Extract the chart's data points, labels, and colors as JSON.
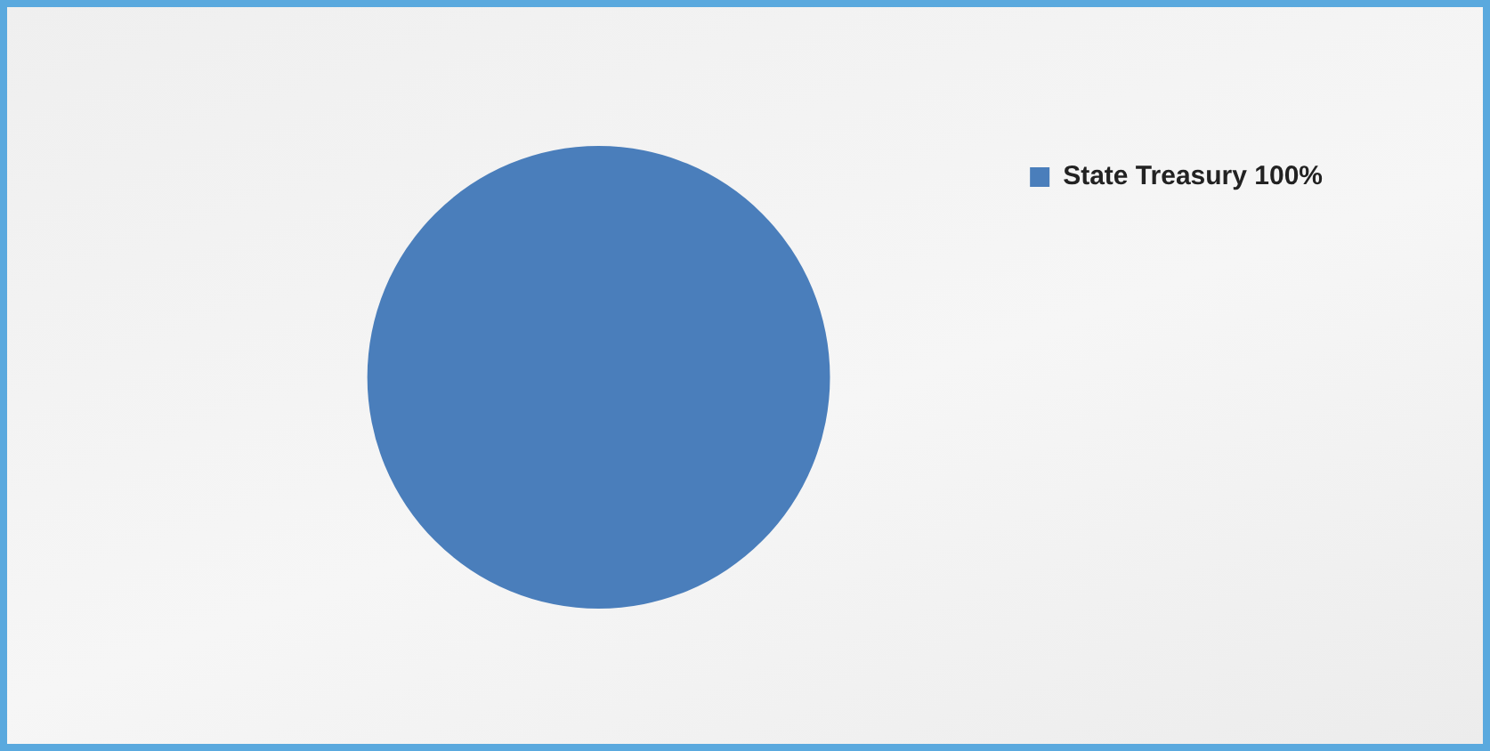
{
  "chart_data": {
    "type": "pie",
    "categories": [
      "State Treasury"
    ],
    "values": [
      100
    ],
    "colors": [
      "#4a7ebb"
    ],
    "value_labels": [
      "100%"
    ],
    "legend": "right"
  }
}
